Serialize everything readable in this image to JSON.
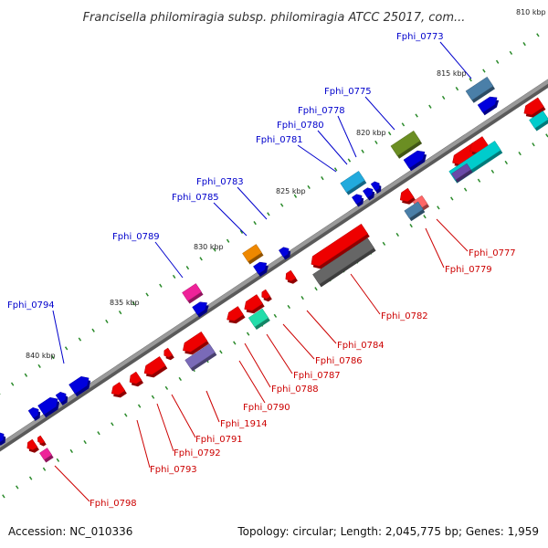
{
  "title": "Francisella philomiragia subsp. philomiragia ATCC 25017, com...",
  "footer": {
    "accession": "Accession: NC_010336",
    "summary": "Topology: circular; Length: 2,045,775 bp; Genes: 1,959"
  },
  "colors": {
    "top_strand_label": "#0000cc",
    "bottom_strand_label": "#cc0000",
    "backbone": "#808080",
    "tick": "#2a8a2a"
  },
  "kbp_marks": [
    {
      "label": "810 kbp"
    },
    {
      "label": "815 kbp"
    },
    {
      "label": "820 kbp"
    },
    {
      "label": "825 kbp"
    },
    {
      "label": "830 kbp"
    },
    {
      "label": "835 kbp"
    },
    {
      "label": "840 kbp"
    }
  ],
  "top_labels": [
    {
      "name": "Fphi_0773"
    },
    {
      "name": "Fphi_0775"
    },
    {
      "name": "Fphi_0778"
    },
    {
      "name": "Fphi_0780"
    },
    {
      "name": "Fphi_0781"
    },
    {
      "name": "Fphi_0783"
    },
    {
      "name": "Fphi_0785"
    },
    {
      "name": "Fphi_0789"
    },
    {
      "name": "Fphi_0794"
    }
  ],
  "bottom_labels": [
    {
      "name": "Fphi_0777"
    },
    {
      "name": "Fphi_0779"
    },
    {
      "name": "Fphi_0782"
    },
    {
      "name": "Fphi_0784"
    },
    {
      "name": "Fphi_0786"
    },
    {
      "name": "Fphi_0787"
    },
    {
      "name": "Fphi_0788"
    },
    {
      "name": "Fphi_0790"
    },
    {
      "name": "Fphi_1914"
    },
    {
      "name": "Fphi_0791"
    },
    {
      "name": "Fphi_0792"
    },
    {
      "name": "Fphi_0793"
    },
    {
      "name": "Fphi_0798"
    }
  ]
}
